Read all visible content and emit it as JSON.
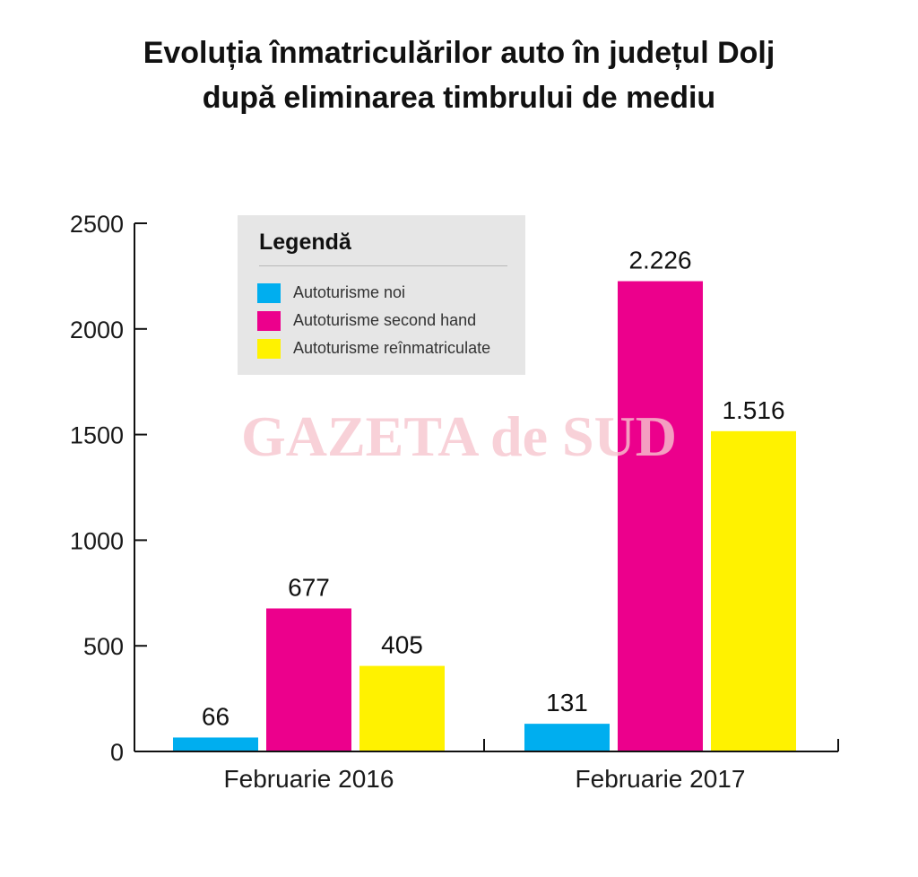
{
  "title": {
    "line1": "Evoluția înmatriculărilor auto în județul Dolj",
    "line2": "după eliminarea timbrului de mediu"
  },
  "watermark": "GAZETA de SUD",
  "legend": {
    "title": "Legendă",
    "items": [
      {
        "label": "Autoturisme noi",
        "color": "#00aeef"
      },
      {
        "label": "Autoturisme second hand",
        "color": "#ec008c"
      },
      {
        "label": "Autoturisme reînmatriculate",
        "color": "#fff200"
      }
    ]
  },
  "chart_data": {
    "type": "bar",
    "categories": [
      "Februarie 2016",
      "Februarie 2017"
    ],
    "series": [
      {
        "name": "Autoturisme noi",
        "color": "#00aeef",
        "values": [
          66,
          131
        ],
        "labels": [
          "66",
          "131"
        ]
      },
      {
        "name": "Autoturisme second hand",
        "color": "#ec008c",
        "values": [
          677,
          2226
        ],
        "labels": [
          "677",
          "2.226"
        ]
      },
      {
        "name": "Autoturisme reînmatriculate",
        "color": "#fff200",
        "values": [
          405,
          1516
        ],
        "labels": [
          "405",
          "1.516"
        ]
      }
    ],
    "ylim": [
      0,
      2500
    ],
    "yticks": [
      0,
      500,
      1000,
      1500,
      2000,
      2500
    ],
    "legend_position": "top-left",
    "grid": false
  }
}
